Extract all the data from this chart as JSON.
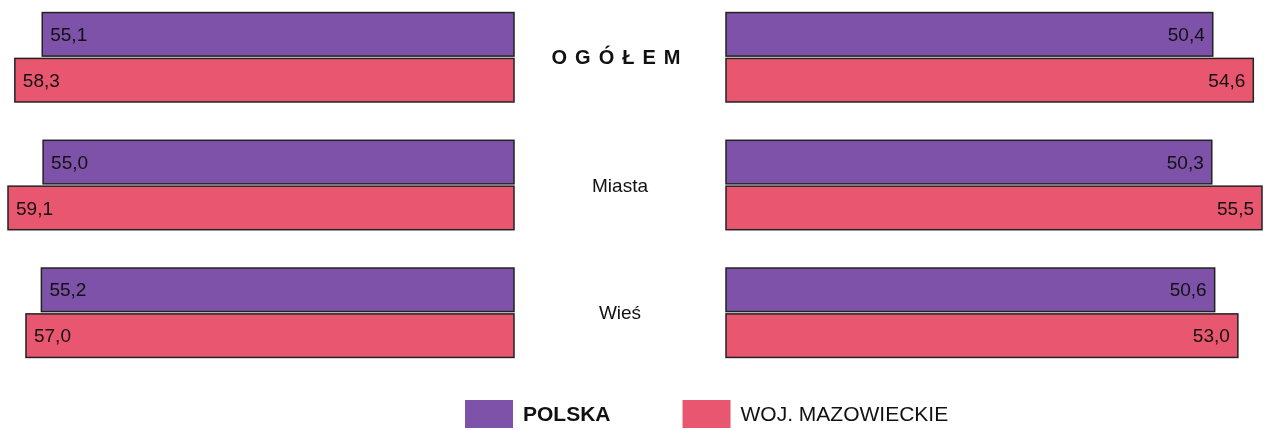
{
  "chart_data": [
    {
      "type": "bar",
      "orientation": "horizontal",
      "categories": [
        "OGÓŁEM",
        "Miasta",
        "Wieś"
      ],
      "legend": "bottom",
      "series": [
        {
          "name": "POLSKA",
          "color": "#7e52a8",
          "values": [
            55.1,
            55.0,
            55.2
          ],
          "value_labels": [
            "55,1",
            "55,0",
            "55,2"
          ]
        },
        {
          "name": "WOJ. MAZOWIECKIE",
          "color": "#e8566f",
          "values": [
            58.3,
            59.1,
            57.0
          ],
          "value_labels": [
            "58,3",
            "59,1",
            "57,0"
          ]
        }
      ]
    },
    {
      "type": "bar",
      "orientation": "horizontal",
      "categories": [
        null,
        null,
        null
      ],
      "series": [
        {
          "color": "#7e52a8",
          "values": [
            50.4,
            50.3,
            50.6
          ],
          "value_labels": [
            "50,4",
            "50,3",
            "50,6"
          ]
        },
        {
          "color": "#e8566f",
          "values": [
            54.6,
            55.5,
            53.0
          ],
          "value_labels": [
            "54,6",
            "55,5",
            "53,0"
          ]
        }
      ]
    }
  ]
}
